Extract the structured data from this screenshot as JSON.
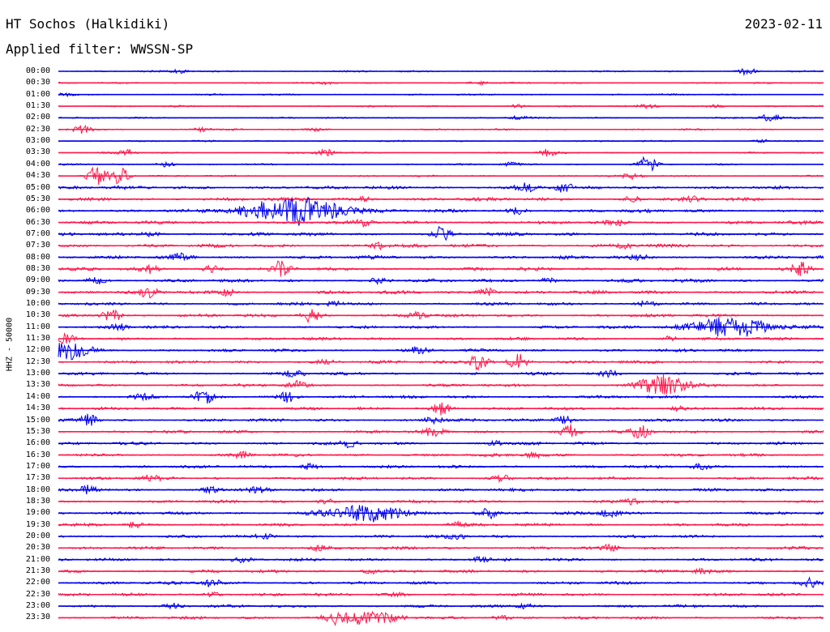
{
  "header": {
    "station": "HT Sochos (Halkidiki)",
    "date": "2023-02-11",
    "filter": "Applied filter: WWSSN-SP"
  },
  "axis": {
    "ylabel": "HHZ - 50000"
  },
  "colors": {
    "even_trace": "#0000ee",
    "odd_trace": "#ff1a4d",
    "text": "#000000",
    "background": "#ffffff"
  },
  "chart_data": {
    "type": "line",
    "title": "HT Sochos (Halkidiki)",
    "subtitle": "Applied filter: WWSSN-SP",
    "ylabel": "HHZ - 50000",
    "xlabel": "",
    "grid": false,
    "legend": "none",
    "rows": [
      {
        "label": "00:00",
        "events": [
          {
            "at": 0.9,
            "amp": 4
          },
          {
            "at": 0.16,
            "amp": 2
          }
        ]
      },
      {
        "label": "00:30",
        "events": [
          {
            "at": 0.55,
            "amp": 2
          },
          {
            "at": 0.35,
            "amp": 1.5
          }
        ]
      },
      {
        "label": "01:00",
        "events": [
          {
            "at": 0.01,
            "amp": 2
          }
        ]
      },
      {
        "label": "01:30",
        "events": [
          {
            "at": 0.6,
            "amp": 2
          },
          {
            "at": 0.77,
            "amp": 2
          },
          {
            "at": 0.86,
            "amp": 2
          }
        ]
      },
      {
        "label": "02:00",
        "events": [
          {
            "at": 0.93,
            "amp": 5
          },
          {
            "at": 0.6,
            "amp": 2
          }
        ]
      },
      {
        "label": "02:30",
        "events": [
          {
            "at": 0.03,
            "amp": 5
          },
          {
            "at": 0.19,
            "amp": 3
          },
          {
            "at": 0.34,
            "amp": 2
          }
        ]
      },
      {
        "label": "03:00",
        "events": [
          {
            "at": 0.92,
            "amp": 2
          }
        ]
      },
      {
        "label": "03:30",
        "events": [
          {
            "at": 0.09,
            "amp": 4
          },
          {
            "at": 0.35,
            "amp": 4
          },
          {
            "at": 0.64,
            "amp": 4
          }
        ]
      },
      {
        "label": "04:00",
        "events": [
          {
            "at": 0.77,
            "amp": 10
          },
          {
            "at": 0.14,
            "amp": 3
          },
          {
            "at": 0.59,
            "amp": 2
          }
        ]
      },
      {
        "label": "04:30",
        "events": [
          {
            "at": 0.05,
            "amp": 12
          },
          {
            "at": 0.08,
            "amp": 11
          },
          {
            "at": 0.75,
            "amp": 4
          }
        ]
      },
      {
        "label": "05:00",
        "events": [
          {
            "at": 0.61,
            "amp": 5
          },
          {
            "at": 0.66,
            "amp": 5
          }
        ]
      },
      {
        "label": "05:30",
        "events": [
          {
            "at": 0.4,
            "amp": 3
          },
          {
            "at": 0.75,
            "amp": 3
          },
          {
            "at": 0.83,
            "amp": 3
          }
        ]
      },
      {
        "label": "06:00",
        "events": [
          {
            "at": 0.31,
            "amp": 18,
            "width": 0.06
          },
          {
            "at": 0.6,
            "amp": 4
          }
        ]
      },
      {
        "label": "06:30",
        "events": [
          {
            "at": 0.4,
            "amp": 4
          },
          {
            "at": 0.73,
            "amp": 3
          }
        ]
      },
      {
        "label": "07:00",
        "events": [
          {
            "at": 0.5,
            "amp": 8
          },
          {
            "at": 0.12,
            "amp": 3
          }
        ]
      },
      {
        "label": "07:30",
        "events": [
          {
            "at": 0.42,
            "amp": 4
          },
          {
            "at": 0.74,
            "amp": 3
          }
        ]
      },
      {
        "label": "08:00",
        "events": [
          {
            "at": 0.16,
            "amp": 4
          },
          {
            "at": 0.76,
            "amp": 3
          }
        ]
      },
      {
        "label": "08:30",
        "events": [
          {
            "at": 0.29,
            "amp": 9
          },
          {
            "at": 0.97,
            "amp": 8
          },
          {
            "at": 0.12,
            "amp": 5
          },
          {
            "at": 0.2,
            "amp": 4
          }
        ]
      },
      {
        "label": "09:00",
        "events": [
          {
            "at": 0.05,
            "amp": 4
          },
          {
            "at": 0.42,
            "amp": 3
          },
          {
            "at": 0.64,
            "amp": 3
          }
        ]
      },
      {
        "label": "09:30",
        "events": [
          {
            "at": 0.12,
            "amp": 7
          },
          {
            "at": 0.22,
            "amp": 5
          },
          {
            "at": 0.56,
            "amp": 5
          }
        ]
      },
      {
        "label": "10:00",
        "events": [
          {
            "at": 0.77,
            "amp": 5
          },
          {
            "at": 0.36,
            "amp": 3
          }
        ]
      },
      {
        "label": "10:30",
        "events": [
          {
            "at": 0.07,
            "amp": 9
          },
          {
            "at": 0.33,
            "amp": 8
          },
          {
            "at": 0.47,
            "amp": 4
          }
        ]
      },
      {
        "label": "11:00",
        "events": [
          {
            "at": 0.88,
            "amp": 13,
            "width": 0.05
          },
          {
            "at": 0.08,
            "amp": 4
          }
        ]
      },
      {
        "label": "11:30",
        "events": [
          {
            "at": 0.01,
            "amp": 5
          },
          {
            "at": 0.8,
            "amp": 3
          }
        ]
      },
      {
        "label": "12:00",
        "events": [
          {
            "at": 0.01,
            "amp": 11,
            "width": 0.03
          },
          {
            "at": 0.47,
            "amp": 4
          }
        ]
      },
      {
        "label": "12:30",
        "events": [
          {
            "at": 0.55,
            "amp": 11
          },
          {
            "at": 0.6,
            "amp": 10
          },
          {
            "at": 0.35,
            "amp": 3
          }
        ]
      },
      {
        "label": "13:00",
        "events": [
          {
            "at": 0.31,
            "amp": 4
          },
          {
            "at": 0.72,
            "amp": 4
          }
        ]
      },
      {
        "label": "13:30",
        "events": [
          {
            "at": 0.79,
            "amp": 13,
            "width": 0.03
          },
          {
            "at": 0.31,
            "amp": 5
          }
        ]
      },
      {
        "label": "14:00",
        "events": [
          {
            "at": 0.19,
            "amp": 8
          },
          {
            "at": 0.3,
            "amp": 7
          },
          {
            "at": 0.11,
            "amp": 3
          }
        ]
      },
      {
        "label": "14:30",
        "events": [
          {
            "at": 0.5,
            "amp": 8
          },
          {
            "at": 0.81,
            "amp": 3
          }
        ]
      },
      {
        "label": "15:00",
        "events": [
          {
            "at": 0.04,
            "amp": 7
          },
          {
            "at": 0.66,
            "amp": 6
          },
          {
            "at": 0.49,
            "amp": 4
          }
        ]
      },
      {
        "label": "15:30",
        "events": [
          {
            "at": 0.67,
            "amp": 9
          },
          {
            "at": 0.76,
            "amp": 9
          },
          {
            "at": 0.49,
            "amp": 5
          }
        ]
      },
      {
        "label": "16:00",
        "events": [
          {
            "at": 0.38,
            "amp": 4
          },
          {
            "at": 0.57,
            "amp": 3
          }
        ]
      },
      {
        "label": "16:30",
        "events": [
          {
            "at": 0.24,
            "amp": 3
          },
          {
            "at": 0.62,
            "amp": 3
          }
        ]
      },
      {
        "label": "17:00",
        "events": [
          {
            "at": 0.33,
            "amp": 4
          },
          {
            "at": 0.84,
            "amp": 3
          }
        ]
      },
      {
        "label": "17:30",
        "events": [
          {
            "at": 0.12,
            "amp": 4
          },
          {
            "at": 0.58,
            "amp": 4
          }
        ]
      },
      {
        "label": "18:00",
        "events": [
          {
            "at": 0.04,
            "amp": 6
          },
          {
            "at": 0.2,
            "amp": 5
          },
          {
            "at": 0.26,
            "amp": 3
          }
        ]
      },
      {
        "label": "18:30",
        "events": [
          {
            "at": 0.35,
            "amp": 3
          },
          {
            "at": 0.75,
            "amp": 3
          }
        ]
      },
      {
        "label": "19:00",
        "events": [
          {
            "at": 0.4,
            "amp": 10,
            "width": 0.05
          },
          {
            "at": 0.56,
            "amp": 8
          },
          {
            "at": 0.72,
            "amp": 5
          }
        ]
      },
      {
        "label": "19:30",
        "events": [
          {
            "at": 0.1,
            "amp": 3
          },
          {
            "at": 0.52,
            "amp": 3
          }
        ]
      },
      {
        "label": "20:00",
        "events": [
          {
            "at": 0.52,
            "amp": 4
          },
          {
            "at": 0.27,
            "amp": 3
          }
        ]
      },
      {
        "label": "20:30",
        "events": [
          {
            "at": 0.34,
            "amp": 3
          },
          {
            "at": 0.72,
            "amp": 3
          }
        ]
      },
      {
        "label": "21:00",
        "events": [
          {
            "at": 0.24,
            "amp": 3
          },
          {
            "at": 0.55,
            "amp": 3
          }
        ]
      },
      {
        "label": "21:30",
        "events": [
          {
            "at": 0.41,
            "amp": 3
          },
          {
            "at": 0.84,
            "amp": 3
          }
        ]
      },
      {
        "label": "22:00",
        "events": [
          {
            "at": 0.2,
            "amp": 5
          },
          {
            "at": 0.98,
            "amp": 5
          }
        ]
      },
      {
        "label": "22:30",
        "events": [
          {
            "at": 0.44,
            "amp": 4
          },
          {
            "at": 0.2,
            "amp": 3
          }
        ]
      },
      {
        "label": "23:00",
        "events": [
          {
            "at": 0.61,
            "amp": 3
          },
          {
            "at": 0.15,
            "amp": 3
          }
        ]
      },
      {
        "label": "23:30",
        "events": [
          {
            "at": 0.4,
            "amp": 8,
            "width": 0.04
          },
          {
            "at": 0.36,
            "amp": 5
          },
          {
            "at": 0.58,
            "amp": 3
          }
        ]
      }
    ]
  }
}
